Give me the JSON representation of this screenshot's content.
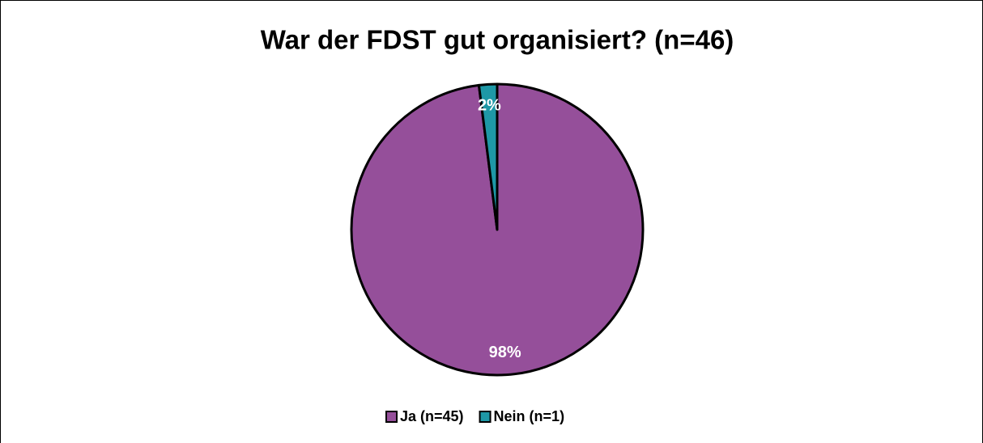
{
  "chart_data": {
    "type": "pie",
    "title": "War der FDST gut organisiert? (n=46)",
    "categories": [
      "Ja (n=45)",
      "Nein (n=1)"
    ],
    "values": [
      98,
      2
    ],
    "value_labels": [
      "98%",
      "2%"
    ],
    "colors": [
      "#954f9a",
      "#1e98a6"
    ],
    "legend": "bottom"
  }
}
